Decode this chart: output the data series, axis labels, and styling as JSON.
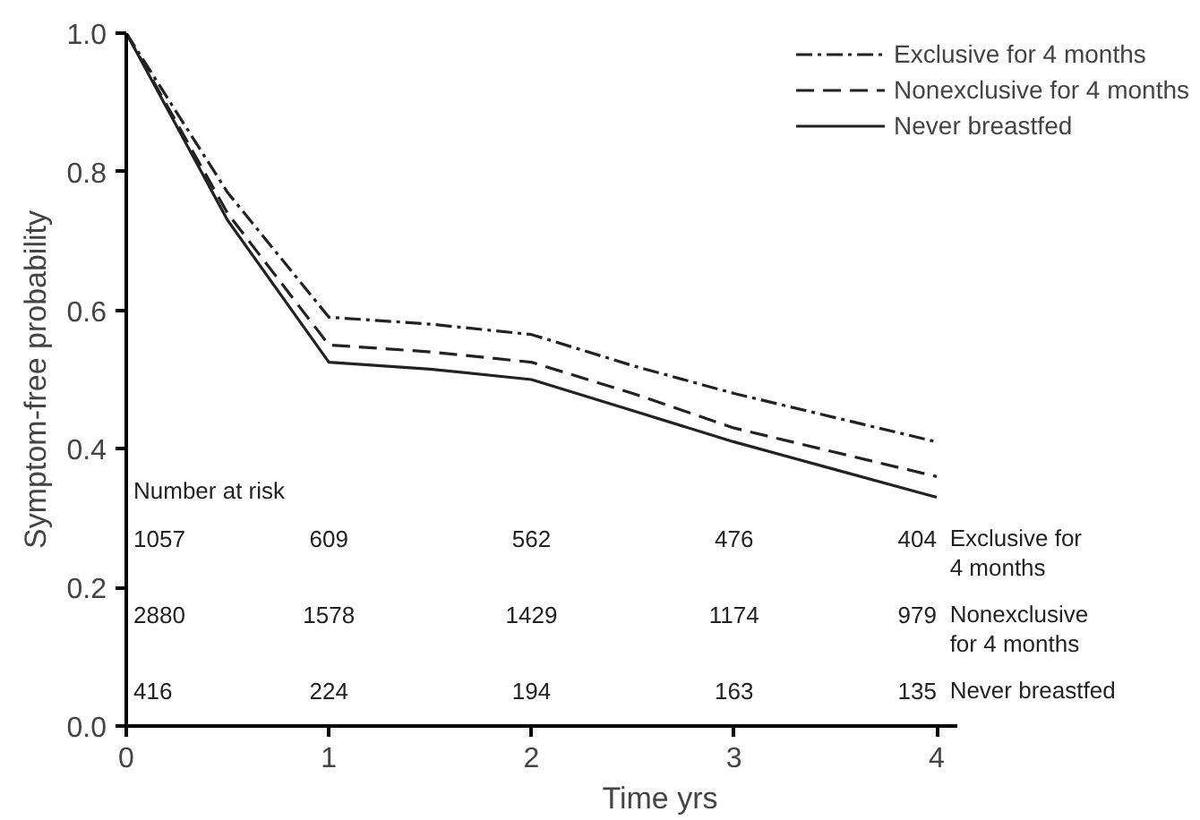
{
  "chart_data": {
    "type": "line",
    "xlabel": "Time yrs",
    "ylabel": "Symptom-free probability",
    "x": [
      0,
      0.5,
      1,
      1.5,
      2,
      2.5,
      3,
      3.5,
      4
    ],
    "series": [
      {
        "name": "Exclusive for 4 months",
        "color": "#222222",
        "line_style": "dashdot",
        "values": [
          1.0,
          0.77,
          0.59,
          0.58,
          0.565,
          0.52,
          0.48,
          0.445,
          0.41
        ]
      },
      {
        "name": "Nonexclusive for 4 months",
        "color": "#222222",
        "line_style": "dashed",
        "values": [
          1.0,
          0.74,
          0.55,
          0.54,
          0.525,
          0.48,
          0.43,
          0.395,
          0.36
        ]
      },
      {
        "name": "Never breastfed",
        "color": "#222222",
        "line_style": "solid",
        "values": [
          1.0,
          0.73,
          0.525,
          0.515,
          0.5,
          0.455,
          0.41,
          0.37,
          0.33
        ]
      }
    ],
    "xlim": [
      0,
      4.1
    ],
    "ylim": [
      0,
      1.0
    ],
    "xticks": [
      0,
      1,
      2,
      3,
      4
    ],
    "yticks": [
      {
        "value": 0,
        "label": "0.0"
      },
      {
        "value": 0.2,
        "label": "0.2"
      },
      {
        "value": 0.4,
        "label": "0.4"
      },
      {
        "value": 0.6,
        "label": "0.6"
      },
      {
        "value": 0.8,
        "label": "0.8"
      },
      {
        "value": 1.0,
        "label": "1.0"
      }
    ],
    "grid": false,
    "legend": "top right",
    "marker": "none",
    "annotations": [
      "Number at risk",
      "1057",
      "609",
      "562",
      "476",
      "404",
      "Exclusive for\n 4 months",
      "2880",
      "1578",
      "1429",
      "1174",
      "979",
      "Nonexclusive\n for 4 months",
      "416",
      "224",
      "194",
      "163",
      "135",
      "Never breastfed"
    ]
  }
}
